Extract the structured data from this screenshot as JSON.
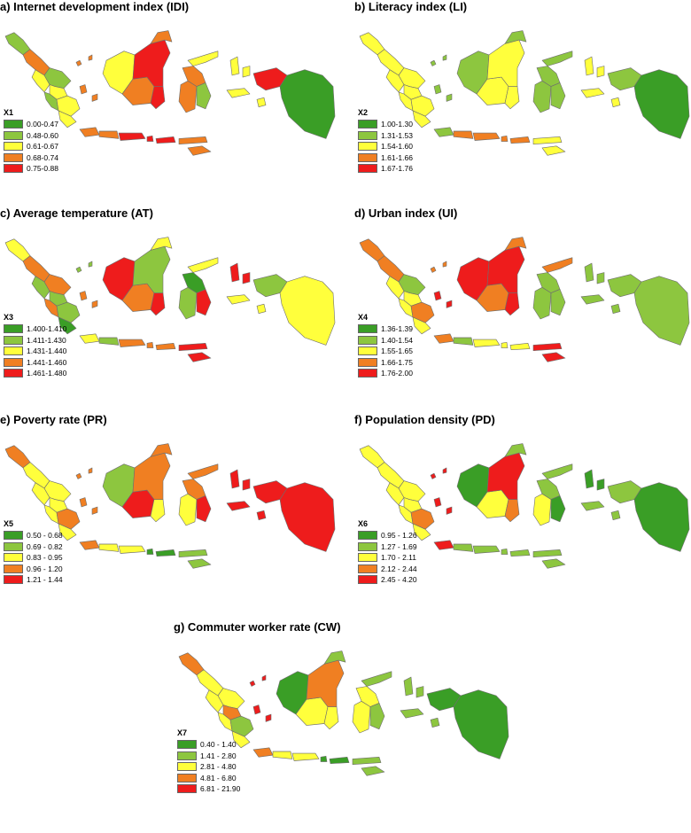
{
  "palette": {
    "dark_green": "#3a9e26",
    "light_green": "#8dc63f",
    "yellow": "#ffff3c",
    "orange": "#f07f22",
    "red": "#ee1c1c",
    "border": "#6e6e6e"
  },
  "panels": [
    {
      "title": "a) Internet development index (IDI)",
      "legend_title": "X1",
      "legend": [
        "0.00-0.47",
        "0.48-0.60",
        "0.61-0.67",
        "0.68-0.74",
        "0.75-0.88"
      ],
      "region_classes": [
        1,
        3,
        2,
        1,
        2,
        1,
        2,
        2,
        3,
        3,
        3,
        3,
        4,
        4,
        3,
        2,
        3,
        4,
        4,
        3,
        2,
        3,
        3,
        1,
        2,
        2,
        4,
        0
      ]
    },
    {
      "title": "b) Literacy index (LI)",
      "legend_title": "X2",
      "legend": [
        "1.00-1.30",
        "1.31-1.53",
        "1.54-1.60",
        "1.61-1.66",
        "1.67-1.76"
      ],
      "region_classes": [
        2,
        2,
        2,
        2,
        2,
        2,
        2,
        2,
        1,
        1,
        1,
        3,
        3,
        3,
        2,
        1,
        2,
        2,
        2,
        1,
        1,
        1,
        1,
        1,
        2,
        2,
        1,
        0
      ]
    },
    {
      "title": "c) Average temperature (AT)",
      "legend_title": "X3",
      "legend": [
        "1.400-1.410",
        "1.411-1.430",
        "1.431-1.440",
        "1.441-1.460",
        "1.461-1.480"
      ],
      "region_classes": [
        2,
        3,
        1,
        3,
        1,
        3,
        1,
        0,
        3,
        1,
        2,
        1,
        3,
        3,
        4,
        4,
        3,
        4,
        1,
        2,
        2,
        0,
        1,
        4,
        4,
        2,
        1,
        2
      ]
    },
    {
      "title": "d) Urban index (UI)",
      "legend_title": "X4",
      "legend": [
        "1.36-1.39",
        "1.40-1.54",
        "1.55-1.65",
        "1.66-1.75",
        "1.76-2.00"
      ],
      "region_classes": [
        3,
        3,
        2,
        1,
        2,
        2,
        3,
        2,
        4,
        3,
        3,
        1,
        2,
        2,
        4,
        4,
        3,
        4,
        4,
        3,
        3,
        1,
        1,
        1,
        1,
        1,
        1,
        1
      ]
    },
    {
      "title": "e) Poverty rate (PR)",
      "legend_title": "X5",
      "legend": [
        "0.50 - 0.68",
        "0.69 - 0.82",
        "0.83 - 0.95",
        "0.96 - 1.20",
        "1.21 - 1.44"
      ],
      "region_classes": [
        3,
        2,
        2,
        2,
        2,
        2,
        3,
        2,
        3,
        3,
        3,
        2,
        2,
        0,
        1,
        1,
        4,
        2,
        3,
        3,
        3,
        3,
        2,
        4,
        4,
        4,
        4,
        4
      ]
    },
    {
      "title": "f) Population density (PD)",
      "legend_title": "X6",
      "legend": [
        "0.95 - 1.26",
        "1.27 - 1.69",
        "1.70 - 2.11",
        "2.12 - 2.44",
        "2.45 - 4.20"
      ],
      "region_classes": [
        2,
        2,
        2,
        2,
        2,
        2,
        3,
        2,
        4,
        4,
        4,
        1,
        1,
        1,
        1,
        0,
        2,
        3,
        4,
        1,
        1,
        1,
        2,
        0,
        0,
        1,
        1,
        0
      ]
    },
    {
      "title": "g) Commuter worker rate (CW)",
      "legend_title": "X7",
      "legend": [
        "0.40 - 1.40",
        "1.41 - 2.80",
        "2.81 - 4.80",
        "4.81 - 6.80",
        "6.81 - 21.90"
      ],
      "region_classes": [
        3,
        2,
        2,
        2,
        3,
        2,
        1,
        2,
        4,
        4,
        3,
        2,
        2,
        0,
        1,
        0,
        2,
        2,
        3,
        1,
        1,
        2,
        2,
        1,
        1,
        1,
        0,
        0
      ]
    }
  ]
}
